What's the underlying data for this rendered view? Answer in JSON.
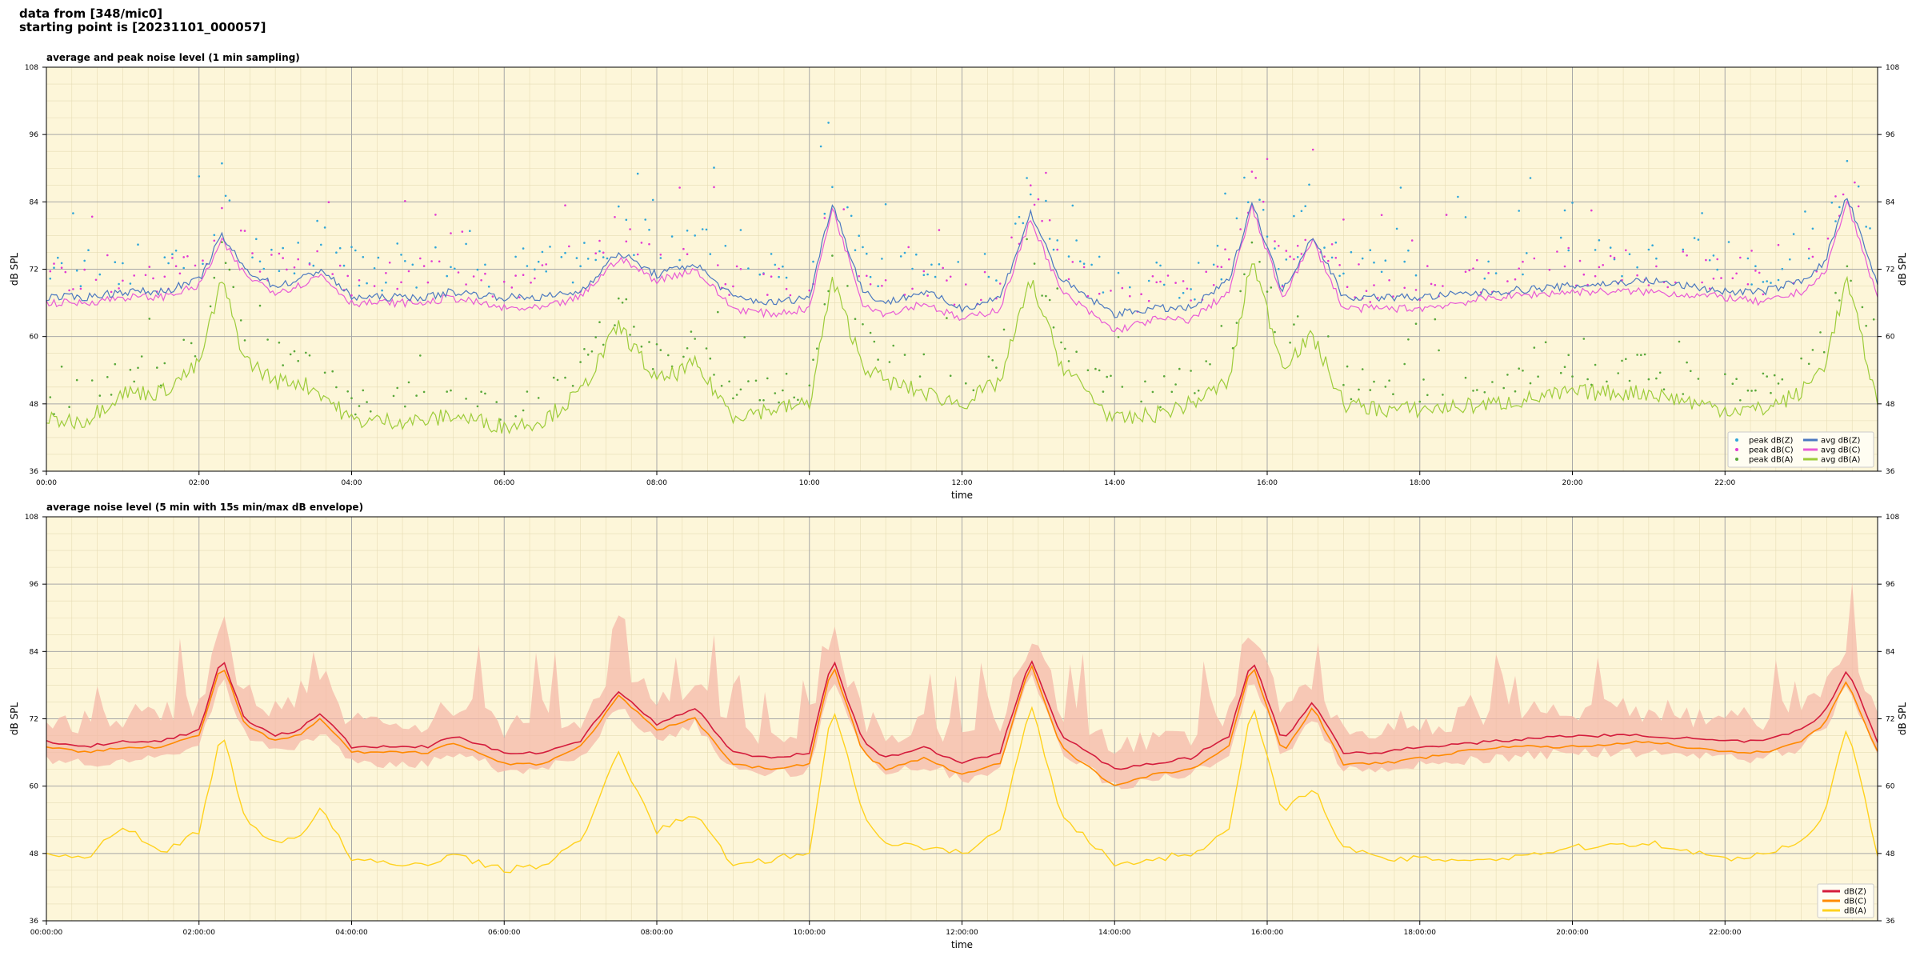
{
  "header": {
    "line1": "data from [348/mic0]",
    "line2": "starting point is [20231101_000057]"
  },
  "colors": {
    "plot_bg": "#fdf6d9",
    "peak_z": "#2fa6d9",
    "peak_c": "#e23ad2",
    "peak_a": "#59a83a",
    "avg_z": "#4b78c0",
    "avg_c": "#e85ad6",
    "avg_a": "#9dcc3a",
    "db_z": "#d41c3c",
    "db_c": "#ff8a00",
    "db_a": "#ffd21e",
    "envelope": "#f4b8a8"
  },
  "chart_data": [
    {
      "type": "line",
      "title": "average and peak noise level (1 min sampling)",
      "xlabel": "time",
      "ylabel": "dB SPL",
      "ylim": [
        36,
        108
      ],
      "xlim_hours": [
        0,
        24
      ],
      "yticks": [
        36,
        48,
        60,
        72,
        84,
        96,
        108
      ],
      "xtick_labels": [
        "00:00",
        "02:00",
        "04:00",
        "06:00",
        "08:00",
        "10:00",
        "12:00",
        "14:00",
        "16:00",
        "18:00",
        "20:00",
        "22:00"
      ],
      "grid": true,
      "legend_position": "lower-right",
      "legend": [
        "peak dB(Z)",
        "peak dB(C)",
        "peak dB(A)",
        "avg dB(Z)",
        "avg dB(C)",
        "avg dB(A)"
      ],
      "x_hours": [
        0,
        0.5,
        1,
        1.5,
        2,
        2.3,
        2.6,
        3,
        3.3,
        3.6,
        4,
        4.5,
        5,
        5.3,
        6,
        6.5,
        7,
        7.5,
        8,
        8.5,
        9,
        9.5,
        10,
        10.3,
        10.7,
        11,
        11.5,
        12,
        12.5,
        12.9,
        13.3,
        14,
        14.5,
        15,
        15.5,
        15.8,
        16.2,
        16.6,
        17,
        17.5,
        18,
        19,
        20,
        21,
        22,
        22.5,
        23,
        23.3,
        23.6,
        24
      ],
      "series": [
        {
          "name": "avg dB(Z)",
          "values": [
            67,
            67,
            68,
            68,
            70,
            78,
            72,
            69,
            70,
            72,
            67,
            67,
            67,
            68,
            67,
            67,
            68,
            75,
            71,
            73,
            67,
            66,
            67,
            84,
            68,
            66,
            68,
            65,
            67,
            82,
            70,
            64,
            65,
            65,
            70,
            84,
            68,
            78,
            67,
            67,
            67,
            68,
            69,
            70,
            68,
            68,
            70,
            73,
            85,
            69
          ]
        },
        {
          "name": "avg dB(C)",
          "values": [
            66,
            66,
            67,
            67,
            69,
            77,
            71,
            68,
            69,
            71,
            66,
            66,
            66,
            67,
            65,
            65,
            67,
            74,
            70,
            72,
            65,
            64,
            65,
            83,
            66,
            64,
            66,
            63,
            65,
            81,
            68,
            61,
            63,
            63,
            68,
            83,
            67,
            77,
            65,
            65,
            65,
            67,
            68,
            68,
            67,
            66,
            68,
            71,
            84,
            67
          ]
        },
        {
          "name": "avg dB(A)",
          "values": [
            45,
            45,
            50,
            50,
            55,
            70,
            56,
            52,
            52,
            50,
            45,
            45,
            45,
            46,
            44,
            45,
            50,
            62,
            52,
            55,
            46,
            47,
            48,
            70,
            55,
            52,
            50,
            48,
            52,
            70,
            55,
            45,
            46,
            48,
            52,
            74,
            55,
            60,
            48,
            47,
            47,
            48,
            50,
            50,
            47,
            47,
            50,
            55,
            70,
            48
          ]
        }
      ]
    },
    {
      "type": "line",
      "title": "average noise level (5 min with 15s min/max dB envelope)",
      "xlabel": "time",
      "ylabel": "dB SPL",
      "ylim": [
        36,
        108
      ],
      "xlim_hours": [
        0,
        24
      ],
      "yticks": [
        36,
        48,
        60,
        72,
        84,
        96,
        108
      ],
      "xtick_labels": [
        "00:00:00",
        "02:00:00",
        "04:00:00",
        "06:00:00",
        "08:00:00",
        "10:00:00",
        "12:00:00",
        "14:00:00",
        "16:00:00",
        "18:00:00",
        "20:00:00",
        "22:00:00"
      ],
      "grid": true,
      "legend_position": "lower-right",
      "legend": [
        "dB(Z)",
        "dB(C)",
        "dB(A)"
      ],
      "x_hours": [
        0,
        0.5,
        1,
        1.5,
        2,
        2.3,
        2.6,
        3,
        3.3,
        3.6,
        4,
        4.5,
        5,
        5.3,
        6,
        6.5,
        7,
        7.5,
        8,
        8.5,
        9,
        9.5,
        10,
        10.3,
        10.7,
        11,
        11.5,
        12,
        12.5,
        12.9,
        13.3,
        14,
        14.5,
        15,
        15.5,
        15.8,
        16.2,
        16.6,
        17,
        17.5,
        18,
        19,
        20,
        21,
        22,
        22.5,
        23,
        23.3,
        23.6,
        24
      ],
      "series": [
        {
          "name": "dB(Z)",
          "values": [
            68,
            67,
            68,
            68,
            70,
            83,
            72,
            69,
            70,
            73,
            67,
            67,
            67,
            69,
            66,
            66,
            68,
            77,
            71,
            74,
            66,
            65,
            66,
            83,
            68,
            65,
            67,
            64,
            66,
            83,
            69,
            63,
            64,
            65,
            69,
            83,
            68,
            75,
            66,
            66,
            67,
            68,
            69,
            69,
            68,
            68,
            70,
            73,
            81,
            68
          ]
        },
        {
          "name": "dB(C)",
          "values": [
            67,
            66,
            67,
            67,
            69,
            82,
            71,
            68,
            69,
            72,
            66,
            66,
            66,
            68,
            64,
            64,
            67,
            76,
            70,
            72,
            64,
            63,
            64,
            82,
            66,
            63,
            65,
            62,
            64,
            82,
            67,
            60,
            62,
            63,
            67,
            82,
            66,
            74,
            64,
            64,
            65,
            67,
            67,
            68,
            66,
            66,
            68,
            71,
            79,
            66
          ]
        },
        {
          "name": "dB(A)",
          "values": [
            48,
            47,
            53,
            48,
            52,
            70,
            54,
            50,
            51,
            56,
            47,
            46,
            46,
            48,
            45,
            46,
            50,
            66,
            52,
            55,
            46,
            47,
            48,
            75,
            55,
            50,
            49,
            48,
            52,
            75,
            55,
            46,
            47,
            48,
            52,
            75,
            55,
            60,
            49,
            47,
            47,
            47,
            49,
            50,
            47,
            48,
            50,
            55,
            71,
            48
          ]
        }
      ]
    }
  ]
}
